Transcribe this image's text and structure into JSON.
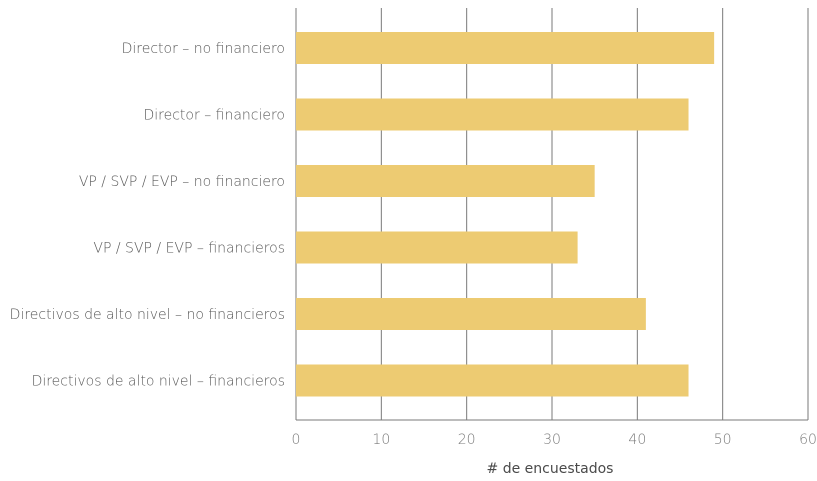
{
  "chart_data": {
    "type": "bar",
    "orientation": "horizontal",
    "categories": [
      "Director – no financiero",
      "Director – financiero",
      "VP / SVP / EVP – no financiero",
      "VP / SVP / EVP – financieros",
      "Directivos de alto nivel – no financieros",
      "Directivos de alto nivel – financieros"
    ],
    "values": [
      49,
      46,
      35,
      33,
      41,
      46
    ],
    "xlabel": "# de encuestados",
    "ylabel": "",
    "xlim": [
      0,
      60
    ],
    "xticks": [
      0,
      10,
      20,
      30,
      40,
      50,
      60
    ],
    "grid": "vertical",
    "legend": "none",
    "bar_color": "#EDCB72",
    "grid_color": "#7a7a7a"
  }
}
